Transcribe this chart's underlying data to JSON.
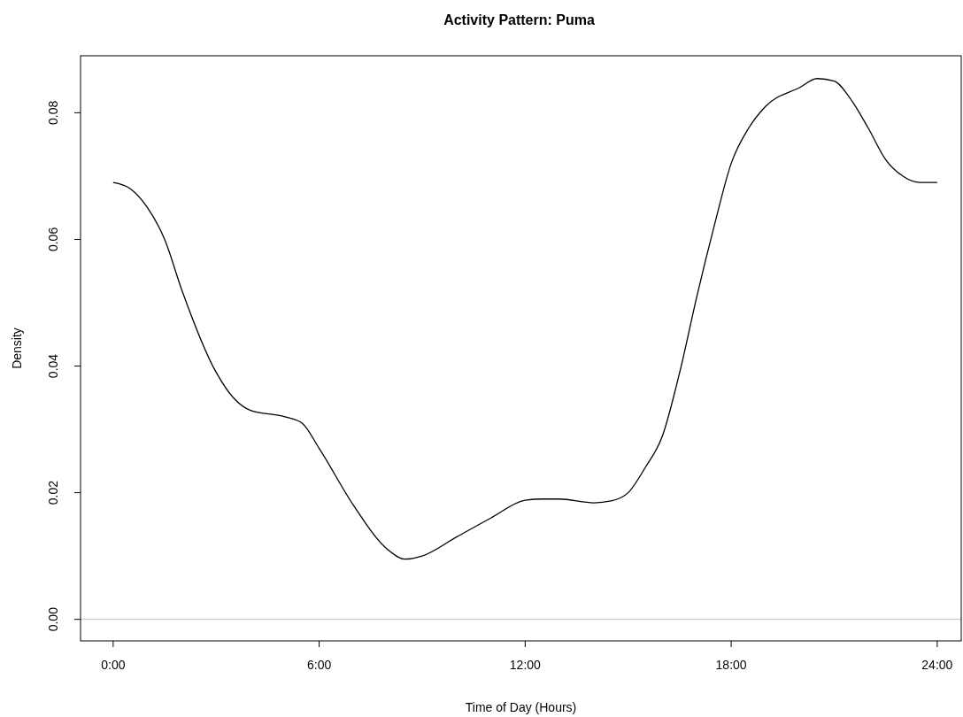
{
  "chart_data": {
    "type": "line",
    "title": "Activity Pattern: Puma",
    "xlabel": "Time of Day (Hours)",
    "ylabel": "Density",
    "x": [
      0,
      0.5,
      1,
      1.5,
      2,
      3,
      3.5,
      4,
      5,
      5.5,
      6,
      7,
      8,
      8.5,
      9,
      10,
      11,
      12,
      12.5,
      13,
      14,
      14.5,
      15,
      15.5,
      16,
      16.5,
      17,
      17.5,
      18,
      18.5,
      19,
      20,
      20.5,
      21,
      21.5,
      22,
      22.5,
      23,
      23.5,
      24
    ],
    "series": [
      {
        "color": "#000000",
        "values": [
          0.069,
          0.068,
          0.065,
          0.06,
          0.052,
          0.039,
          0.035,
          0.033,
          0.032,
          0.031,
          0.027,
          0.018,
          0.011,
          0.0095,
          0.01,
          0.013,
          0.016,
          0.0188,
          0.019,
          0.019,
          0.0184,
          0.0187,
          0.02,
          0.024,
          0.029,
          0.039,
          0.051,
          0.062,
          0.072,
          0.0775,
          0.081,
          0.084,
          0.0854,
          0.085,
          0.082,
          0.0775,
          0.0726,
          0.07,
          0.069,
          0.069
        ]
      }
    ],
    "xlim": [
      -0.95,
      24.7
    ],
    "ylim": [
      -0.0034,
      0.089
    ],
    "xticks": [
      {
        "value": 0,
        "label": "0:00"
      },
      {
        "value": 6,
        "label": "6:00"
      },
      {
        "value": 12,
        "label": "12:00"
      },
      {
        "value": 18,
        "label": "18:00"
      },
      {
        "value": 24,
        "label": "24:00"
      }
    ],
    "yticks": [
      {
        "value": 0,
        "label": "0.00"
      },
      0.02,
      0.04,
      0.06,
      0.08
    ],
    "ref_lines": [
      {
        "axis": "y",
        "value": 0,
        "color": "#bebebe"
      }
    ],
    "marker": "none",
    "line_style": "solid"
  }
}
